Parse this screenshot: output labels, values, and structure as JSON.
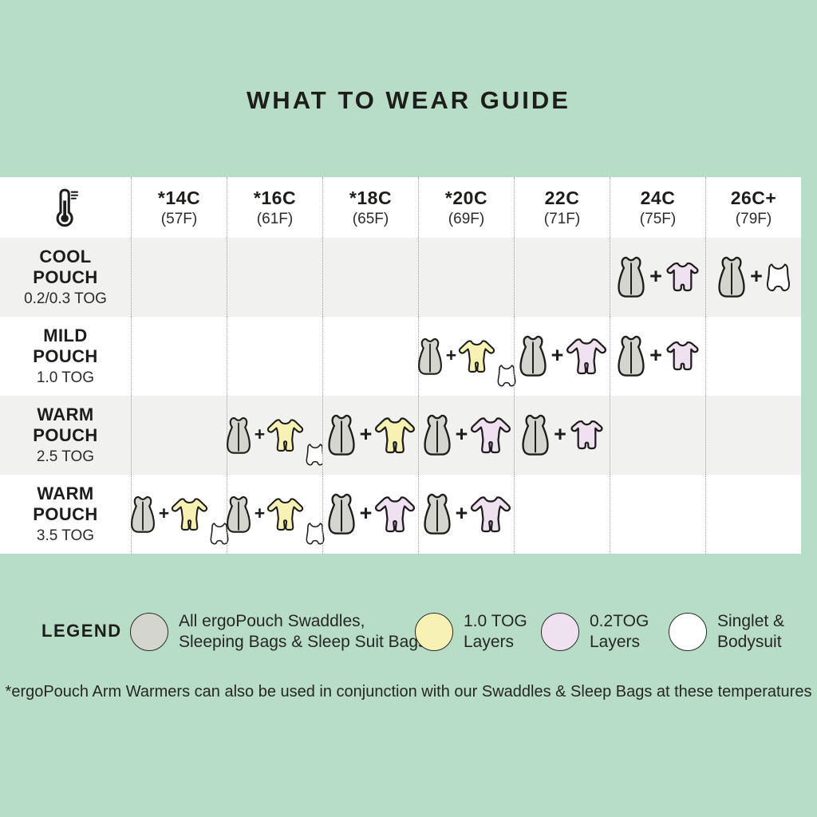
{
  "title": "WHAT TO WEAR GUIDE",
  "colors": {
    "background": "#b8ddc7",
    "table_bg": "#ffffff",
    "row_alt_bg": "#f1f1ef",
    "ink": "#1d1d1b",
    "bag_fill": "#d5d5cf",
    "yellow_fill": "#f7f2b3",
    "pink_fill": "#efe1f0",
    "white_fill": "#ffffff"
  },
  "chart_data": {
    "type": "table",
    "title": "WHAT TO WEAR GUIDE",
    "corner_icon": "thermometer-icon",
    "columns": [
      {
        "temp": "*14C",
        "fahrenheit": "(57F)"
      },
      {
        "temp": "*16C",
        "fahrenheit": "(61F)"
      },
      {
        "temp": "*18C",
        "fahrenheit": "(65F)"
      },
      {
        "temp": "*20C",
        "fahrenheit": "(69F)"
      },
      {
        "temp": "22C",
        "fahrenheit": "(71F)"
      },
      {
        "temp": "24C",
        "fahrenheit": "(75F)"
      },
      {
        "temp": "26C+",
        "fahrenheit": "(79F)"
      }
    ],
    "rows": [
      {
        "name": [
          "COOL",
          "POUCH"
        ],
        "tog": "0.2/0.3 TOG",
        "cells": [
          [],
          [],
          [],
          [],
          [],
          [
            "bag",
            "plus",
            "romper-pink"
          ],
          [
            "bag",
            "plus",
            "singlet"
          ]
        ]
      },
      {
        "name": [
          "MILD",
          "POUCH"
        ],
        "tog": "1.0 TOG",
        "cells": [
          [],
          [],
          [],
          [
            "bag",
            "plus",
            "onesie-yellow",
            "singlet"
          ],
          [
            "bag",
            "plus",
            "onesie-pink"
          ],
          [
            "bag",
            "plus",
            "romper-pink"
          ],
          []
        ]
      },
      {
        "name": [
          "WARM",
          "POUCH"
        ],
        "tog": "2.5 TOG",
        "cells": [
          [],
          [
            "bag",
            "plus",
            "onesie-yellow",
            "singlet"
          ],
          [
            "bag",
            "plus",
            "onesie-yellow"
          ],
          [
            "bag",
            "plus",
            "onesie-pink"
          ],
          [
            "bag",
            "plus",
            "romper-pink"
          ],
          [],
          []
        ]
      },
      {
        "name": [
          "WARM",
          "POUCH"
        ],
        "tog": "3.5 TOG",
        "cells": [
          [
            "bag",
            "plus",
            "onesie-yellow",
            "singlet"
          ],
          [
            "bag",
            "plus",
            "onesie-yellow",
            "singlet"
          ],
          [
            "bag",
            "plus",
            "onesie-pink"
          ],
          [
            "bag",
            "plus",
            "onesie-pink"
          ],
          [],
          [],
          []
        ]
      }
    ],
    "legend": {
      "label": "LEGEND",
      "items": [
        {
          "color": "#d5d5cf",
          "lines": [
            "All ergoPouch Swaddles,",
            "Sleeping Bags & Sleep Suit Bags"
          ]
        },
        {
          "color": "#f7f2b3",
          "lines": [
            "1.0 TOG",
            "Layers"
          ]
        },
        {
          "color": "#efe1f0",
          "lines": [
            "0.2TOG",
            "Layers"
          ]
        },
        {
          "color": "#ffffff",
          "lines": [
            "Singlet &",
            "Bodysuit"
          ]
        }
      ]
    },
    "footnote": "*ergoPouch Arm Warmers can also be used in conjunction with our Swaddles & Sleep Bags at these temperatures"
  }
}
